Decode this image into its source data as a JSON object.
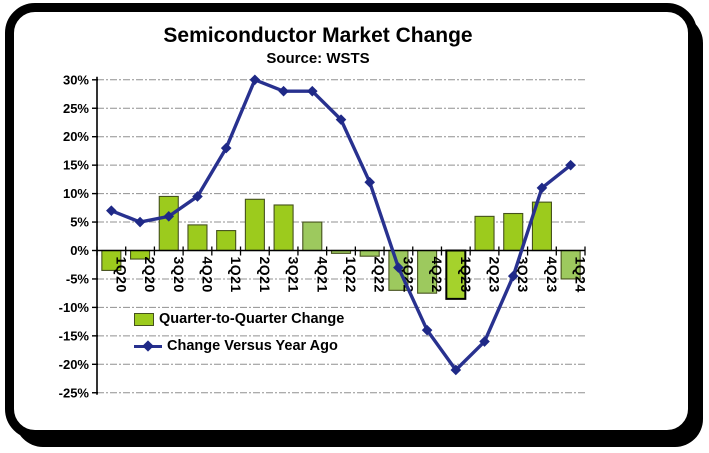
{
  "header": {
    "title": "Semiconductor Market Change",
    "subtitle": "Source: WSTS"
  },
  "legend": {
    "position": "inside bottom-left",
    "items": [
      {
        "label": "Quarter-to-Quarter Change",
        "marker": "green-bar-swatch"
      },
      {
        "label": "Change Versus Year Ago",
        "marker": "blue-line-diamond"
      }
    ]
  },
  "chart_data": {
    "type": "bar+line combo",
    "title": "Semiconductor Market Change",
    "subtitle": "Source: WSTS",
    "categories": [
      "1Q20",
      "2Q20",
      "3Q20",
      "4Q20",
      "1Q21",
      "2Q21",
      "3Q21",
      "4Q21",
      "1Q22",
      "2Q22",
      "3Q22",
      "4Q22",
      "1Q23",
      "2Q23",
      "3Q23",
      "4Q23",
      "1Q24"
    ],
    "series": [
      {
        "name": "Quarter-to-Quarter Change",
        "type": "bar",
        "unit": "%",
        "values": [
          -3.5,
          -1.5,
          9.5,
          4.5,
          3.5,
          9,
          8,
          5,
          -0.5,
          -1,
          -7,
          -7.5,
          -8.5,
          6,
          6.5,
          8.5,
          -5
        ]
      },
      {
        "name": "Change Versus Year Ago",
        "type": "line",
        "unit": "%",
        "values": [
          7,
          5,
          6,
          9.5,
          18,
          30,
          28,
          28,
          23,
          12,
          -3,
          -14,
          -21,
          -16,
          -4.5,
          11,
          15
        ]
      }
    ],
    "ylim": [
      -25,
      30
    ],
    "ytick_step": 5,
    "ytick_labels": [
      "30%",
      "25%",
      "20%",
      "15%",
      "10%",
      "5%",
      "0%",
      "-5%",
      "-10%",
      "-15%",
      "-20%",
      "-25%"
    ],
    "grid": "horizontal dashed",
    "highlighted_category": "1Q23",
    "bar_variants": [
      "main",
      "main",
      "main",
      "main",
      "main",
      "main",
      "main",
      "soft",
      "soft",
      "soft",
      "soft",
      "soft",
      "highlight",
      "main",
      "main",
      "main",
      "soft"
    ],
    "colors": {
      "bar_main": "#9CCB1D",
      "bar_soft": "#9DC95E",
      "bar_highlight_fill": "#A5D22C",
      "bar_border": "#45511D",
      "bar_highlight_border": "#000000",
      "line": "#28318F",
      "marker": "#1F2987",
      "gridline": "#909090",
      "axis": "#000000"
    }
  }
}
